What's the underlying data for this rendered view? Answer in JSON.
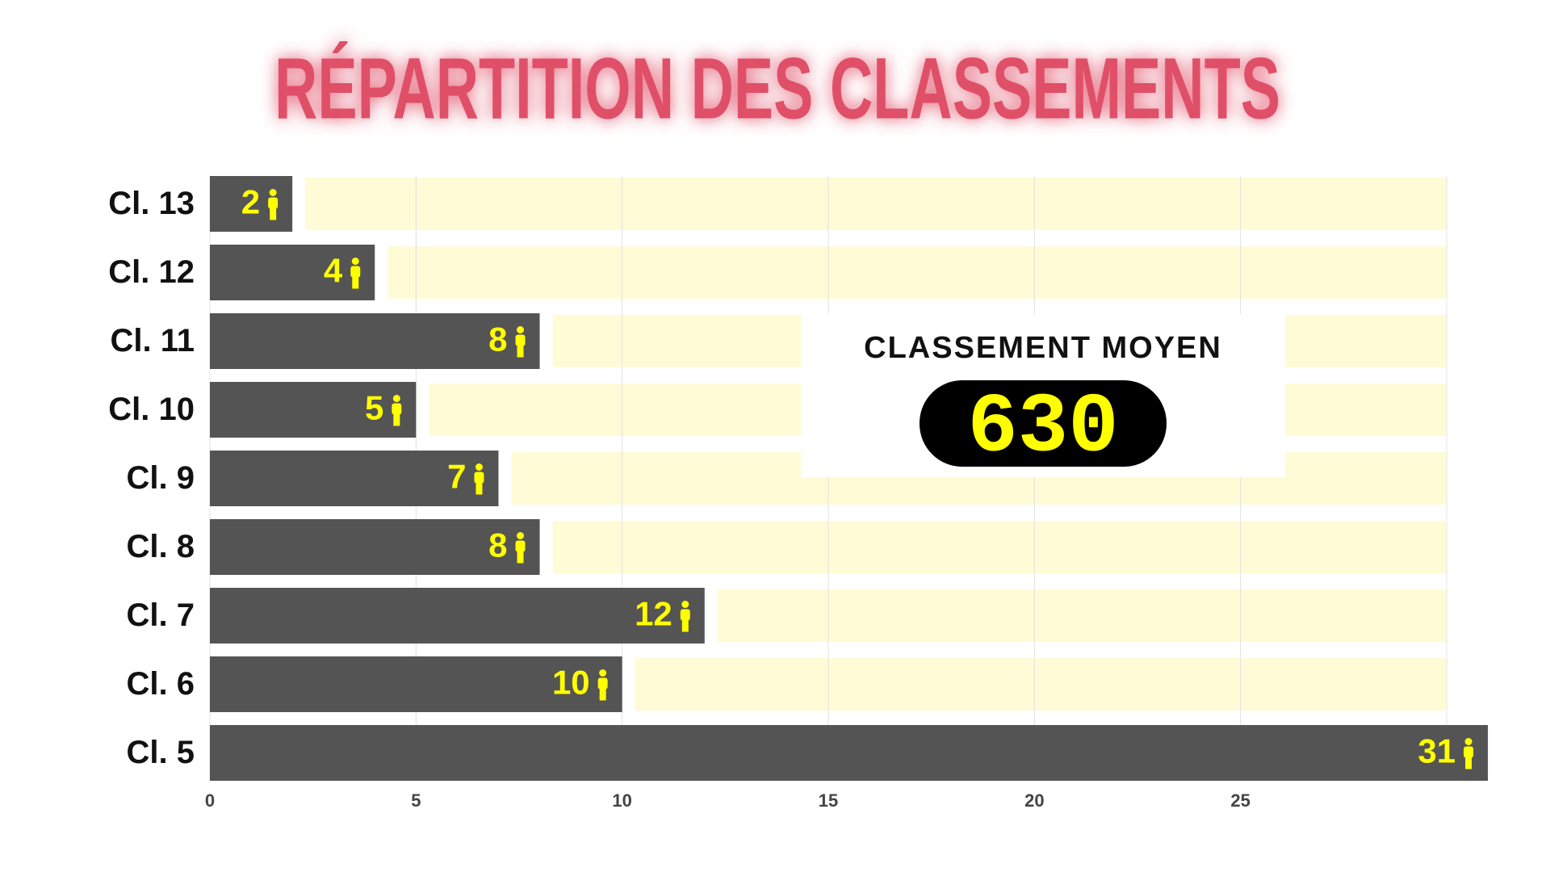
{
  "chart_data": {
    "type": "bar",
    "orientation": "horizontal",
    "title": "RÉPARTITION DES CLASSEMENTS",
    "categories": [
      "Cl. 13",
      "Cl. 12",
      "Cl. 11",
      "Cl. 10",
      "Cl. 9",
      "Cl. 8",
      "Cl. 7",
      "Cl. 6",
      "Cl. 5"
    ],
    "values": [
      2,
      4,
      8,
      5,
      7,
      8,
      12,
      10,
      31
    ],
    "color": "#545454",
    "track_color": "#fffbd6",
    "label_color": "#ffff00",
    "xlim": [
      0,
      30
    ],
    "xticks": [
      0,
      5,
      10,
      15,
      20,
      25
    ],
    "grid": true,
    "card": {
      "title": "CLASSEMENT MOYEN",
      "value": "630"
    }
  }
}
